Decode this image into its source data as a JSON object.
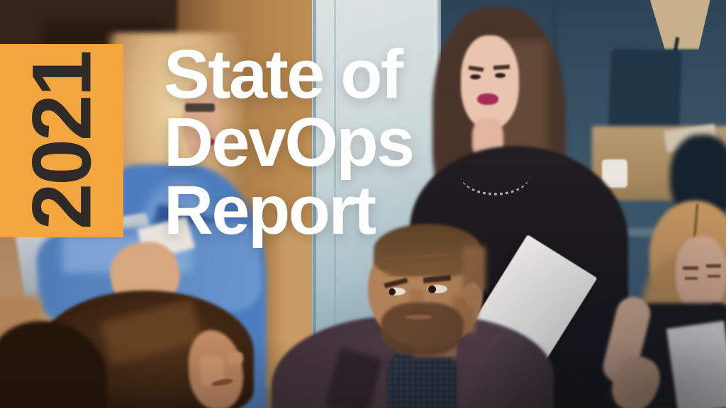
{
  "cover": {
    "year_badge": {
      "label": "2021",
      "bg_color": "#F3A63E",
      "text_color": "#2E2A27"
    },
    "title": {
      "line1": "State of",
      "line2": "DevOps",
      "line3": "Report",
      "color": "#FFFFFF"
    }
  },
  "photo": {
    "description": "Blurred office scene: a woman in a black top stands holding a white document beside a glass wall; a seated bearded man looks up skeptically; a blonde woman in a blue shirt stands at left; a blonde woman in a black blazer looks down at right; coworkers' heads in the foreground."
  }
}
